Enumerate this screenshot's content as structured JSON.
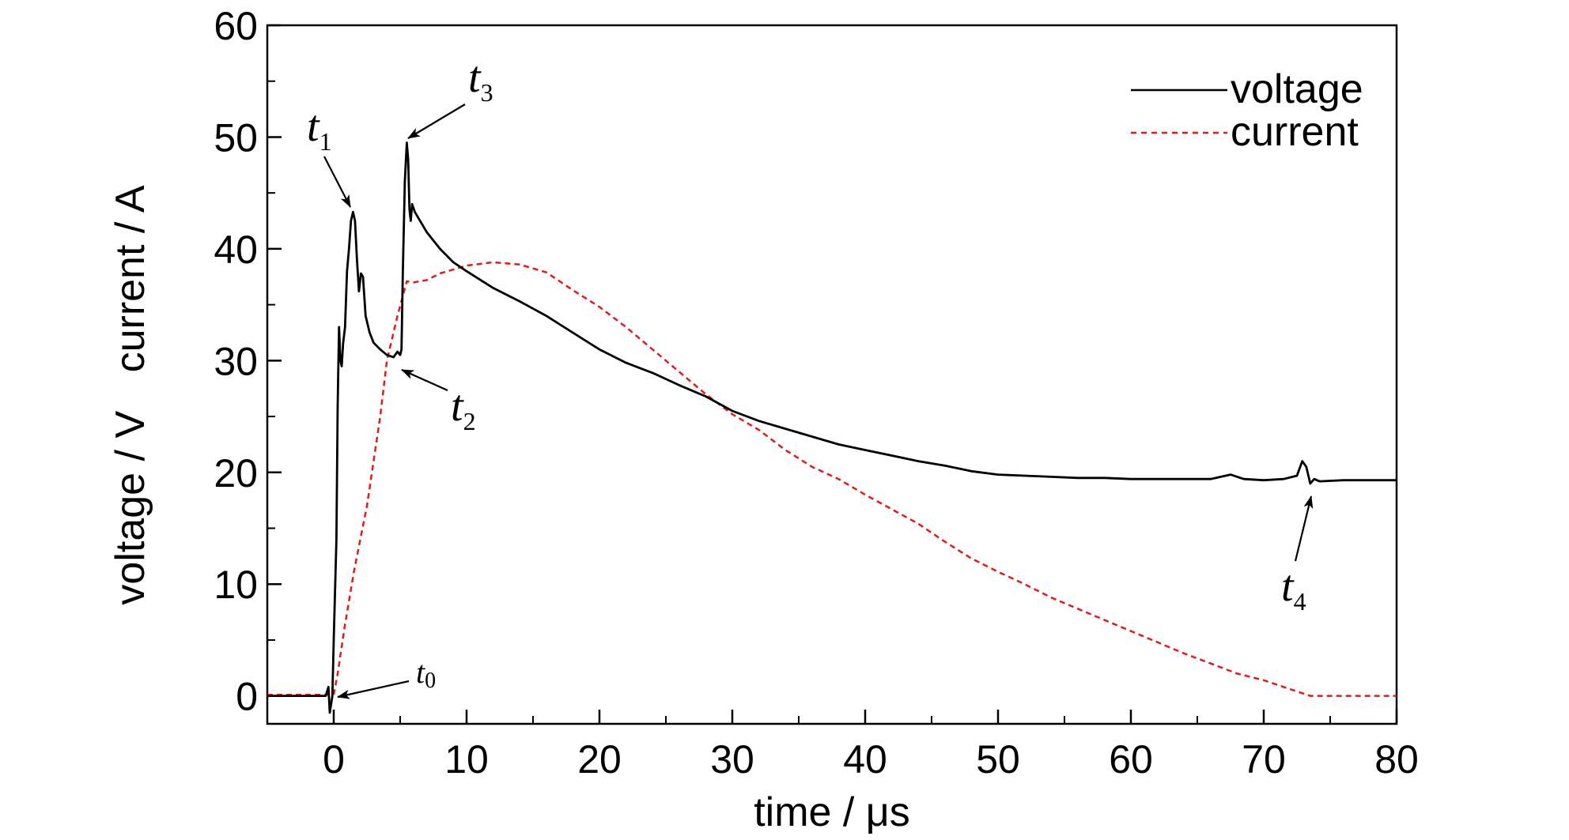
{
  "chart_data": {
    "type": "line",
    "xlabel": "time / μs",
    "ylabel_parts": [
      "voltage / V",
      "current / A"
    ],
    "xlim": [
      -5,
      80
    ],
    "ylim": [
      -2.5,
      60
    ],
    "x_ticks": [
      0,
      10,
      20,
      30,
      40,
      50,
      60,
      70,
      80
    ],
    "y_ticks": [
      0,
      10,
      20,
      30,
      40,
      50,
      60
    ],
    "legend_position": "top-right",
    "series": [
      {
        "name": "voltage",
        "color": "#000000",
        "style": "solid",
        "points": [
          [
            -5,
            0
          ],
          [
            -0.6,
            0
          ],
          [
            -0.4,
            0.8
          ],
          [
            -0.3,
            -1.5
          ],
          [
            -0.1,
            0
          ],
          [
            0,
            5
          ],
          [
            0.2,
            14
          ],
          [
            0.3,
            26
          ],
          [
            0.4,
            33
          ],
          [
            0.5,
            30
          ],
          [
            0.6,
            29.5
          ],
          [
            0.7,
            31.5
          ],
          [
            0.85,
            33
          ],
          [
            1.0,
            38
          ],
          [
            1.15,
            40
          ],
          [
            1.3,
            42.5
          ],
          [
            1.45,
            43.3
          ],
          [
            1.6,
            42.5
          ],
          [
            1.75,
            39
          ],
          [
            1.9,
            36.2
          ],
          [
            2.05,
            37.8
          ],
          [
            2.2,
            37.5
          ],
          [
            2.4,
            34
          ],
          [
            2.7,
            32.5
          ],
          [
            3.0,
            31.6
          ],
          [
            3.5,
            31
          ],
          [
            4.0,
            30.5
          ],
          [
            4.5,
            30.3
          ],
          [
            4.8,
            30.8
          ],
          [
            5.0,
            30.5
          ],
          [
            5.1,
            31
          ],
          [
            5.2,
            38
          ],
          [
            5.35,
            46
          ],
          [
            5.5,
            49.5
          ],
          [
            5.6,
            48
          ],
          [
            5.7,
            43.5
          ],
          [
            5.8,
            42.5
          ],
          [
            5.9,
            44
          ],
          [
            6.1,
            43.3
          ],
          [
            6.5,
            42.5
          ],
          [
            7,
            41.5
          ],
          [
            8,
            40
          ],
          [
            9,
            38.8
          ],
          [
            10,
            38
          ],
          [
            12,
            36.5
          ],
          [
            14,
            35.3
          ],
          [
            16,
            34
          ],
          [
            18,
            32.5
          ],
          [
            20,
            31
          ],
          [
            22,
            29.8
          ],
          [
            24,
            28.9
          ],
          [
            26,
            27.8
          ],
          [
            28,
            26.8
          ],
          [
            30,
            25.5
          ],
          [
            32,
            24.6
          ],
          [
            34,
            23.9
          ],
          [
            36,
            23.2
          ],
          [
            38,
            22.5
          ],
          [
            40,
            22
          ],
          [
            42,
            21.5
          ],
          [
            44,
            21
          ],
          [
            46,
            20.6
          ],
          [
            48,
            20.1
          ],
          [
            50,
            19.8
          ],
          [
            52,
            19.7
          ],
          [
            54,
            19.6
          ],
          [
            56,
            19.5
          ],
          [
            58,
            19.5
          ],
          [
            60,
            19.4
          ],
          [
            62,
            19.4
          ],
          [
            64,
            19.4
          ],
          [
            66,
            19.4
          ],
          [
            67.5,
            19.8
          ],
          [
            68.5,
            19.4
          ],
          [
            70,
            19.3
          ],
          [
            71.5,
            19.4
          ],
          [
            72.5,
            19.7
          ],
          [
            72.9,
            21
          ],
          [
            73.2,
            20.5
          ],
          [
            73.5,
            19.0
          ],
          [
            73.8,
            19.4
          ],
          [
            74.2,
            19.2
          ],
          [
            76,
            19.3
          ],
          [
            78,
            19.3
          ],
          [
            80,
            19.3
          ]
        ]
      },
      {
        "name": "current",
        "color": "#e31a1c",
        "style": "dashed",
        "points": [
          [
            -5,
            0.1
          ],
          [
            0,
            0.1
          ],
          [
            0.3,
            2
          ],
          [
            0.8,
            6
          ],
          [
            1.5,
            11
          ],
          [
            2.5,
            17
          ],
          [
            3.5,
            25
          ],
          [
            4.0,
            30
          ],
          [
            4.8,
            34
          ],
          [
            5.5,
            37.1
          ],
          [
            6,
            37
          ],
          [
            7,
            37.2
          ],
          [
            8,
            37.8
          ],
          [
            10,
            38.5
          ],
          [
            12,
            38.8
          ],
          [
            14,
            38.6
          ],
          [
            16,
            37.9
          ],
          [
            18,
            36.3
          ],
          [
            20,
            34.8
          ],
          [
            22,
            33
          ],
          [
            24,
            31
          ],
          [
            26,
            29
          ],
          [
            28,
            27
          ],
          [
            30,
            25.2
          ],
          [
            32,
            23.8
          ],
          [
            34,
            22
          ],
          [
            36,
            20.5
          ],
          [
            38,
            19.4
          ],
          [
            40,
            18
          ],
          [
            42,
            16.7
          ],
          [
            44,
            15.4
          ],
          [
            46,
            13.8
          ],
          [
            48,
            12.3
          ],
          [
            50,
            11.1
          ],
          [
            52,
            10
          ],
          [
            54,
            8.8
          ],
          [
            56,
            7.8
          ],
          [
            58,
            6.8
          ],
          [
            60,
            5.8
          ],
          [
            62,
            4.8
          ],
          [
            64,
            3.8
          ],
          [
            66,
            2.9
          ],
          [
            68,
            2
          ],
          [
            70,
            1.4
          ],
          [
            72,
            0.6
          ],
          [
            73.5,
            0
          ],
          [
            80,
            0
          ]
        ]
      }
    ],
    "annotations": [
      {
        "base": "t",
        "sub": "0",
        "x": 0.2,
        "y": 0
      },
      {
        "base": "t",
        "sub": "1",
        "x": 1.45,
        "y": 43.3
      },
      {
        "base": "t",
        "sub": "2",
        "x": 5.0,
        "y": 30.5
      },
      {
        "base": "t",
        "sub": "3",
        "x": 5.5,
        "y": 49.5
      },
      {
        "base": "t",
        "sub": "4",
        "x": 73.5,
        "y": 19.2
      }
    ]
  }
}
